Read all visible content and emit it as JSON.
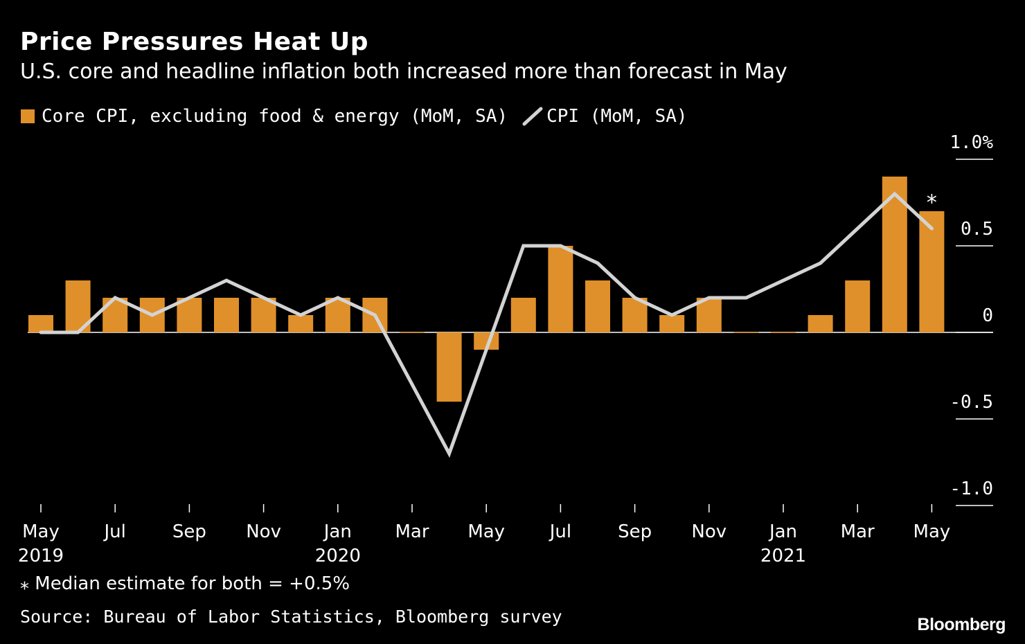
{
  "colors": {
    "background": "#000000",
    "core_bar": "#E0902A",
    "cpi_line": "#D3D3D3",
    "axis": "#FFFFFF"
  },
  "footnote_mark": "⁎",
  "footnote": "Median estimate for both = +0.5%",
  "source": "Source: Bureau of Labor Statistics, Bloomberg survey",
  "brand": "Bloomberg",
  "chart_data": {
    "type": "bar+line",
    "title": "Price Pressures Heat Up",
    "subtitle": "U.S. core and headline inflation both increased more than forecast in May",
    "legend": [
      {
        "label": "Core CPI, excluding food & energy (MoM, SA)",
        "kind": "bar",
        "color": "#E0902A"
      },
      {
        "label": "CPI (MoM, SA)",
        "kind": "line",
        "color": "#D3D3D3"
      }
    ],
    "months": [
      "2019-05",
      "2019-06",
      "2019-07",
      "2019-08",
      "2019-09",
      "2019-10",
      "2019-11",
      "2019-12",
      "2020-01",
      "2020-02",
      "2020-03",
      "2020-04",
      "2020-05",
      "2020-06",
      "2020-07",
      "2020-08",
      "2020-09",
      "2020-10",
      "2020-11",
      "2020-12",
      "2021-01",
      "2021-02",
      "2021-03",
      "2021-04",
      "2021-05"
    ],
    "series": [
      {
        "name": "Core CPI, excluding food & energy (MoM, SA)",
        "type": "bar",
        "values": [
          0.1,
          0.3,
          0.2,
          0.2,
          0.2,
          0.2,
          0.2,
          0.1,
          0.2,
          0.2,
          -0.005,
          -0.4,
          -0.1,
          0.2,
          0.5,
          0.3,
          0.2,
          0.1,
          0.2,
          -0.005,
          -0.005,
          0.1,
          0.3,
          0.9,
          0.7
        ]
      },
      {
        "name": "CPI (MoM, SA)",
        "type": "line",
        "values": [
          0.0,
          0.0,
          0.2,
          0.1,
          0.2,
          0.3,
          0.2,
          0.1,
          0.2,
          0.1,
          -0.3,
          -0.7,
          -0.1,
          0.5,
          0.5,
          0.4,
          0.2,
          0.1,
          0.2,
          0.2,
          0.3,
          0.4,
          0.6,
          0.8,
          0.6
        ]
      }
    ],
    "x_ticks": [
      {
        "index": 0,
        "label": "May",
        "year": "2019"
      },
      {
        "index": 2,
        "label": "Jul"
      },
      {
        "index": 4,
        "label": "Sep"
      },
      {
        "index": 6,
        "label": "Nov"
      },
      {
        "index": 8,
        "label": "Jan",
        "year": "2020"
      },
      {
        "index": 10,
        "label": "Mar"
      },
      {
        "index": 12,
        "label": "May"
      },
      {
        "index": 14,
        "label": "Jul"
      },
      {
        "index": 16,
        "label": "Sep"
      },
      {
        "index": 18,
        "label": "Nov"
      },
      {
        "index": 20,
        "label": "Jan",
        "year": "2021"
      },
      {
        "index": 22,
        "label": "Mar"
      },
      {
        "index": 24,
        "label": "May"
      }
    ],
    "y_ticks": [
      {
        "value": 1.0,
        "label": "1.0%"
      },
      {
        "value": 0.5,
        "label": "0.5"
      },
      {
        "value": 0,
        "label": "0"
      },
      {
        "value": -0.5,
        "label": "-0.5"
      },
      {
        "value": -1.0,
        "label": "-1.0"
      }
    ],
    "ylim": [
      -1.0,
      1.0
    ],
    "y_axis_side": "right",
    "annotation": {
      "index": 24,
      "text": "⁎"
    }
  }
}
